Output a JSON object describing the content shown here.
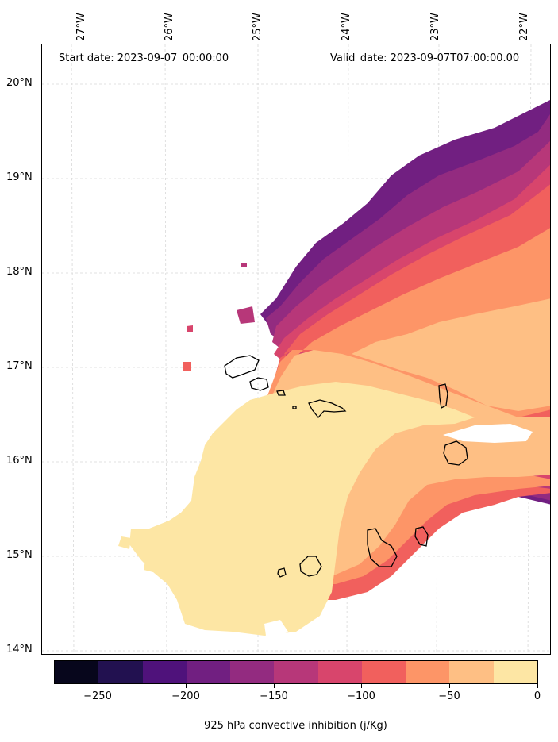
{
  "header": {
    "start_date": "Start date: 2023-09-07_00:00:00",
    "valid_date": "Valid_date: 2023-09-07T07:00:00.00"
  },
  "longitude_labels": [
    "27°W",
    "26°W",
    "25°W",
    "24°W",
    "23°W",
    "22°W"
  ],
  "latitude_labels": [
    "20°N",
    "19°N",
    "18°N",
    "17°N",
    "16°N",
    "15°N",
    "14°N"
  ],
  "colorbar": {
    "title": "925 hPa convective inhibition (j/Kg)",
    "tick_labels": [
      "−250",
      "−200",
      "−150",
      "−100",
      "−50",
      "0"
    ],
    "levels": [
      -275,
      -250,
      -225,
      -200,
      -175,
      -150,
      -125,
      -100,
      -75,
      -50,
      -25,
      0
    ],
    "colors": [
      "#07061c",
      "#221150",
      "#4f127b",
      "#711f81",
      "#932b80",
      "#b73779",
      "#d8456c",
      "#f1605d",
      "#fd9567",
      "#febf84",
      "#fde6a4"
    ]
  },
  "colors": {
    "grid": "#cccccc",
    "coastline": "#000000"
  }
}
